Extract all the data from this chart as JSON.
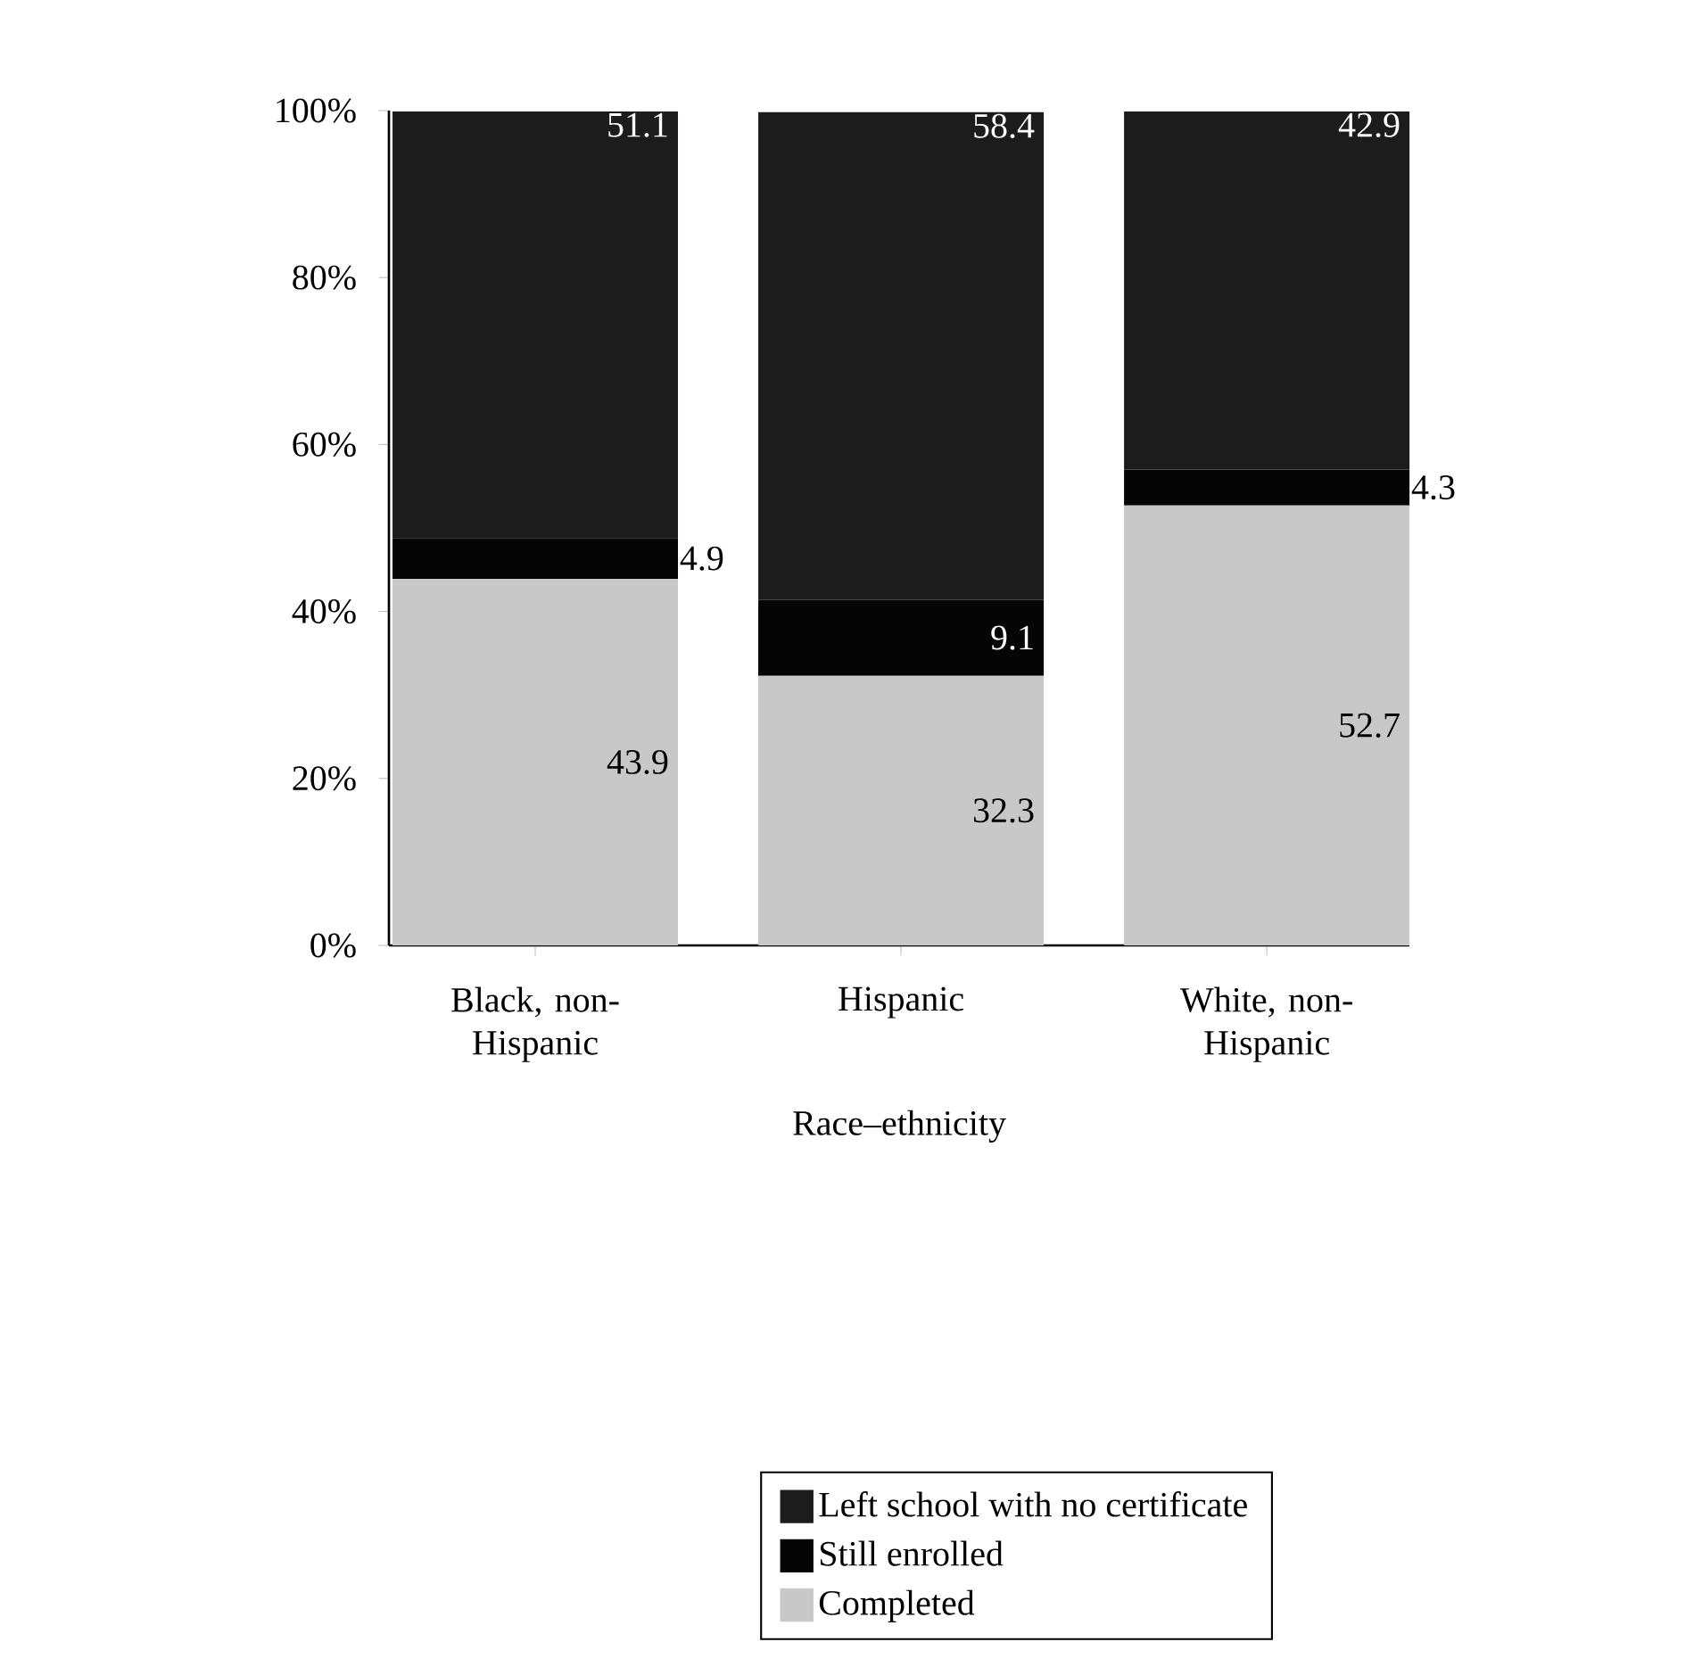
{
  "chart_data": {
    "type": "bar",
    "stacked": true,
    "xlabel": "Race–ethnicity",
    "categories": [
      "Black, non-Hispanic",
      "Hispanic",
      "White, non-Hispanic"
    ],
    "series": [
      {
        "name": "Completed",
        "color": "#c8c8c8",
        "values": [
          43.9,
          32.3,
          52.7
        ]
      },
      {
        "name": "Still enrolled",
        "color": "#050505",
        "values": [
          4.9,
          9.1,
          4.3
        ]
      },
      {
        "name": "Left school with no certificate",
        "color": "#1c1c1c",
        "values": [
          51.1,
          58.4,
          42.9
        ]
      }
    ],
    "ylim": [
      0,
      100
    ],
    "yticks": [
      {
        "value": 0,
        "label": "0%"
      },
      {
        "value": 20,
        "label": "20%"
      },
      {
        "value": 40,
        "label": "40%"
      },
      {
        "value": 60,
        "label": "60%"
      },
      {
        "value": 80,
        "label": "80%"
      },
      {
        "value": 100,
        "label": "100%"
      }
    ],
    "data_labels": true,
    "legend": "bottom"
  }
}
